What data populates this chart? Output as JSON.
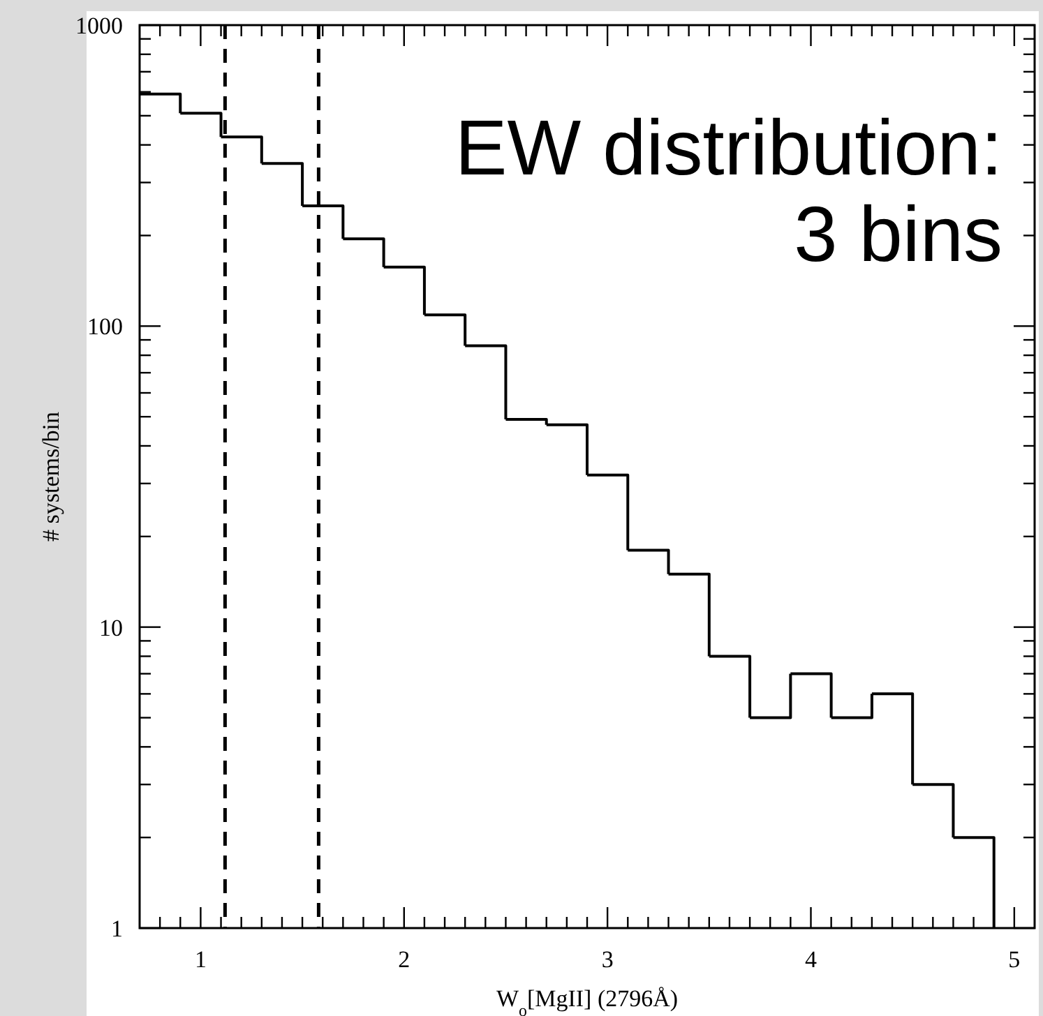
{
  "chart_data": {
    "type": "histogram",
    "title": "EW distribution:\n3 bins",
    "xlabel": "W$_{o}$[MgII] (2796Å)",
    "ylabel": "# systems/bin",
    "bins": [
      0.7,
      0.9,
      1.1,
      1.3,
      1.5,
      1.7,
      1.9,
      2.1,
      2.3,
      2.5,
      2.7,
      2.9,
      3.1,
      3.3,
      3.5,
      3.7,
      3.9,
      4.1,
      4.3,
      4.5,
      4.7,
      4.9
    ],
    "values": [
      590,
      510,
      425,
      347,
      251,
      195,
      157,
      109,
      86,
      49,
      47,
      32,
      18,
      15,
      8,
      5,
      7,
      5,
      6,
      3,
      2
    ],
    "color": "#000000",
    "log": "y",
    "xlim": [
      0.7,
      5.1
    ],
    "ylim": [
      1,
      1000
    ],
    "xticks": [
      {
        "value": 0.8,
        "label": null
      },
      {
        "value": 0.9,
        "label": null
      },
      1,
      {
        "value": 1.1,
        "label": null
      },
      {
        "value": 1.2,
        "label": null
      },
      {
        "value": 1.3,
        "label": null
      },
      {
        "value": 1.4,
        "label": null
      },
      {
        "value": 1.5,
        "label": null
      },
      {
        "value": 1.6,
        "label": null
      },
      {
        "value": 1.7,
        "label": null
      },
      {
        "value": 1.8,
        "label": null
      },
      {
        "value": 1.9,
        "label": null
      },
      2,
      {
        "value": 2.1,
        "label": null
      },
      {
        "value": 2.2,
        "label": null
      },
      {
        "value": 2.3,
        "label": null
      },
      {
        "value": 2.4,
        "label": null
      },
      {
        "value": 2.5,
        "label": null
      },
      {
        "value": 2.6,
        "label": null
      },
      {
        "value": 2.7,
        "label": null
      },
      {
        "value": 2.8,
        "label": null
      },
      {
        "value": 2.9,
        "label": null
      },
      3,
      {
        "value": 3.1,
        "label": null
      },
      {
        "value": 3.2,
        "label": null
      },
      {
        "value": 3.3,
        "label": null
      },
      {
        "value": 3.4,
        "label": null
      },
      {
        "value": 3.5,
        "label": null
      },
      {
        "value": 3.6,
        "label": null
      },
      {
        "value": 3.7,
        "label": null
      },
      {
        "value": 3.8,
        "label": null
      },
      {
        "value": 3.9,
        "label": null
      },
      4,
      {
        "value": 4.1,
        "label": null
      },
      {
        "value": 4.2,
        "label": null
      },
      {
        "value": 4.3,
        "label": null
      },
      {
        "value": 4.4,
        "label": null
      },
      {
        "value": 4.5,
        "label": null
      },
      {
        "value": 4.6,
        "label": null
      },
      {
        "value": 4.7,
        "label": null
      },
      {
        "value": 4.8,
        "label": null
      },
      {
        "value": 4.9,
        "label": null
      },
      5
    ],
    "yticks": [
      1,
      {
        "value": 2,
        "label": null
      },
      {
        "value": 3,
        "label": null
      },
      {
        "value": 4,
        "label": null
      },
      {
        "value": 5,
        "label": null
      },
      {
        "value": 6,
        "label": null
      },
      {
        "value": 7,
        "label": null
      },
      {
        "value": 8,
        "label": null
      },
      {
        "value": 9,
        "label": null
      },
      10,
      {
        "value": 20,
        "label": null
      },
      {
        "value": 30,
        "label": null
      },
      {
        "value": 40,
        "label": null
      },
      {
        "value": 50,
        "label": null
      },
      {
        "value": 60,
        "label": null
      },
      {
        "value": 70,
        "label": null
      },
      {
        "value": 80,
        "label": null
      },
      {
        "value": 90,
        "label": null
      },
      100,
      {
        "value": 200,
        "label": null
      },
      {
        "value": 300,
        "label": null
      },
      {
        "value": 400,
        "label": null
      },
      {
        "value": 500,
        "label": null
      },
      {
        "value": 600,
        "label": null
      },
      {
        "value": 700,
        "label": null
      },
      {
        "value": 800,
        "label": null
      },
      {
        "value": 900,
        "label": null
      },
      1000
    ],
    "ref_lines": [
      {
        "axis": "x",
        "value": 1.12,
        "line_style": "dashed"
      },
      {
        "axis": "x",
        "value": 1.58,
        "line_style": "dashed"
      }
    ]
  }
}
